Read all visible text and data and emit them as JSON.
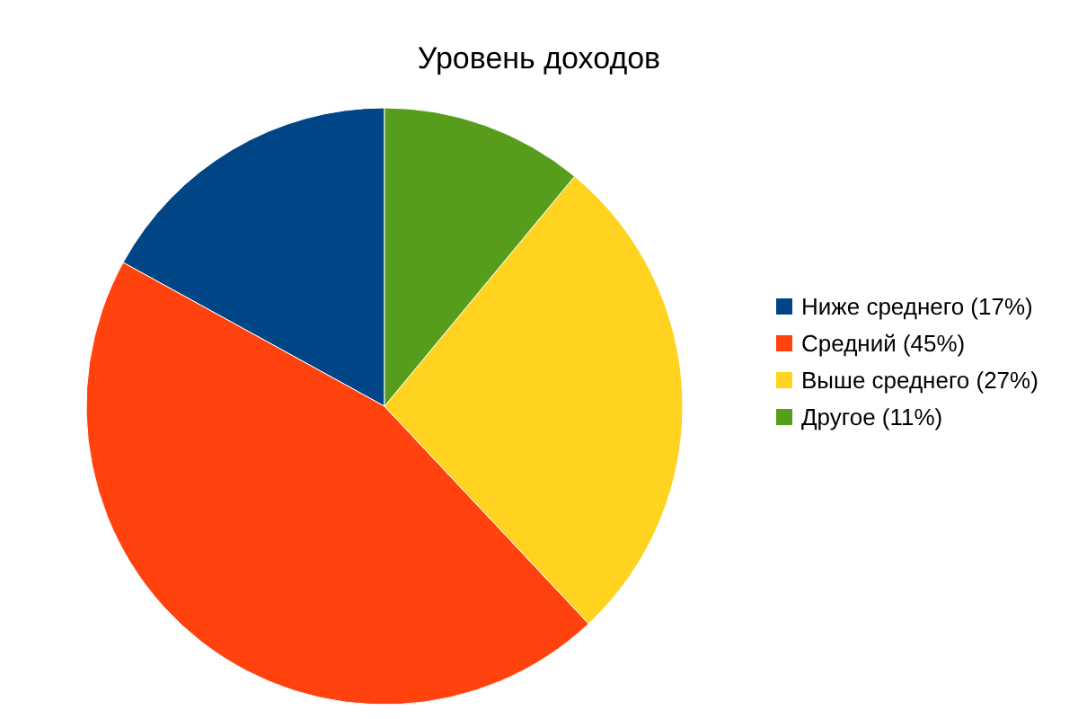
{
  "chart_data": {
    "type": "pie",
    "title": "Уровень доходов",
    "categories": [
      "Ниже среднего (17%)",
      "Средний (45%)",
      "Выше среднего (27%)",
      "Другое (11%)"
    ],
    "values": [
      17,
      45,
      27,
      11
    ],
    "colors": [
      "#004586",
      "#ff420e",
      "#ffd320",
      "#579d1c"
    ],
    "legend": "right"
  }
}
